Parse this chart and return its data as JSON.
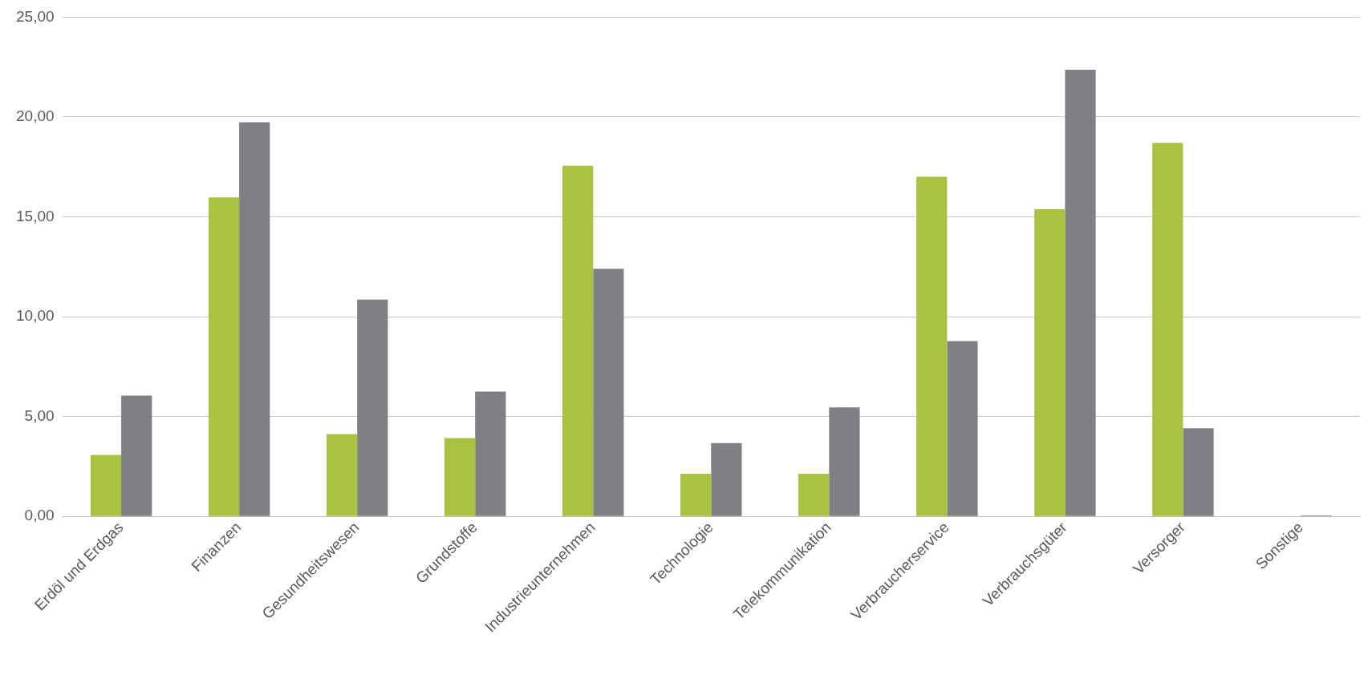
{
  "chart_data": {
    "type": "bar",
    "categories": [
      "Erdöl und Erdgas",
      "Finanzen",
      "Gesundheitswesen",
      "Grundstoffe",
      "Industrieunternehmen",
      "Technologie",
      "Telekommunikation",
      "Verbraucherservice",
      "Verbrauchsgüter",
      "Versorger",
      "Sonstige"
    ],
    "series": [
      {
        "color": "#a9c23f",
        "values": [
          3.08,
          15.97,
          4.12,
          3.92,
          17.56,
          2.13,
          2.13,
          17.01,
          15.38,
          18.7,
          0
        ]
      },
      {
        "color": "#7f8084",
        "values": [
          6.05,
          19.74,
          10.86,
          6.25,
          12.4,
          3.67,
          5.46,
          8.78,
          22.37,
          4.41,
          0.05
        ]
      }
    ],
    "ylim": [
      0,
      25
    ],
    "yticks": [
      {
        "value": 0,
        "label": "0,00"
      },
      {
        "value": 5,
        "label": "5,00"
      },
      {
        "value": 10,
        "label": "10,00"
      },
      {
        "value": 15,
        "label": "15,00"
      },
      {
        "value": 20,
        "label": "20,00"
      },
      {
        "value": 25,
        "label": "25,00"
      }
    ],
    "grid": "y"
  }
}
